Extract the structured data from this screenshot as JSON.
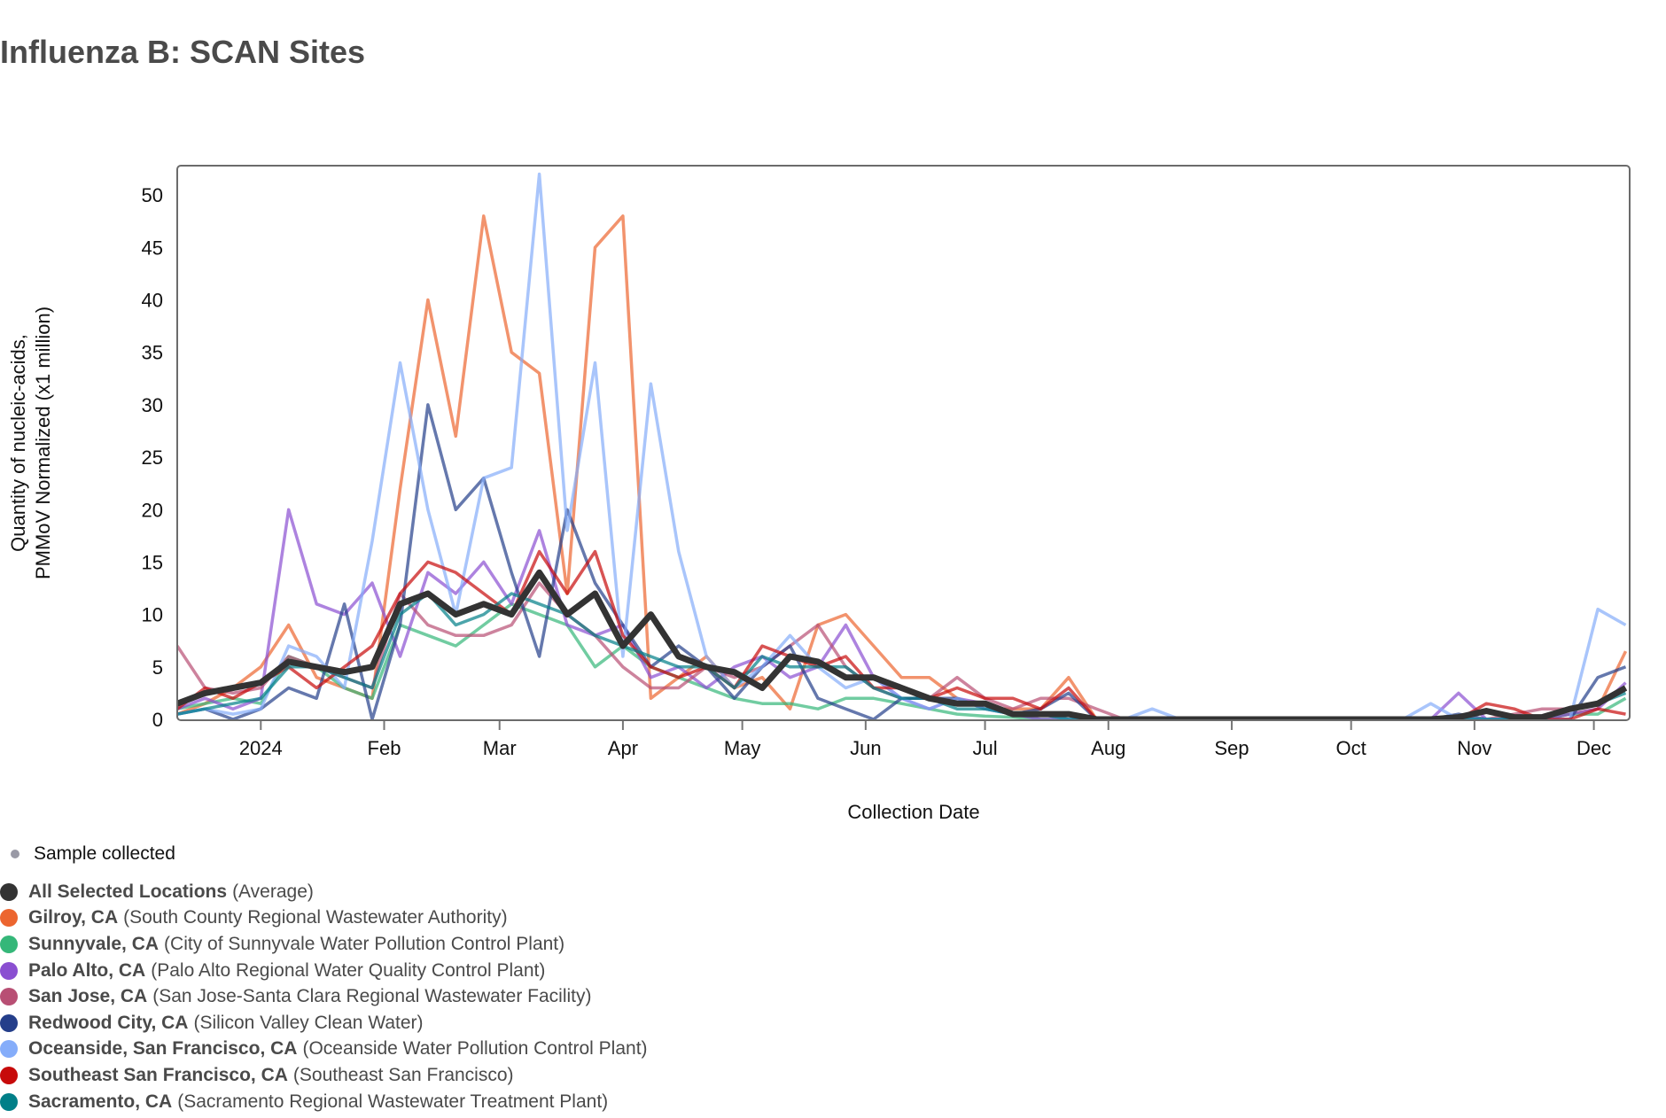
{
  "title": "Influenza B: SCAN Sites",
  "legend": {
    "sample_label": "Sample collected",
    "items": [
      {
        "location": "All Selected Locations",
        "facility": "(Average)",
        "color": "#333333"
      },
      {
        "location": "Gilroy, CA",
        "facility": "(South County Regional Wastewater Authority)",
        "color": "#EC652F"
      },
      {
        "location": "Sunnyvale, CA",
        "facility": "(City of Sunnyvale Water Pollution Control Plant)",
        "color": "#35B779"
      },
      {
        "location": "Palo Alto, CA",
        "facility": "(Palo Alto Regional Water Quality Control Plant)",
        "color": "#8A4FD1"
      },
      {
        "location": "San Jose, CA",
        "facility": "(San Jose-Santa Clara Regional Wastewater Facility)",
        "color": "#B84F74"
      },
      {
        "location": "Redwood City, CA",
        "facility": "(Silicon Valley Clean Water)",
        "color": "#243E8A"
      },
      {
        "location": "Oceanside, San Francisco, CA",
        "facility": "(Oceanside Water Pollution Control Plant)",
        "color": "#85ADFA"
      },
      {
        "location": "Southeast San Francisco, CA",
        "facility": "(Southeast San Francisco)",
        "color": "#C70A0A"
      },
      {
        "location": "Sacramento, CA",
        "facility": "(Sacramento Regional Wastewater Treatment Plant)",
        "color": "#007F88"
      }
    ]
  },
  "chart_data": {
    "type": "line",
    "title": "Influenza B: SCAN Sites",
    "xlabel": "Collection Date",
    "ylabel": [
      "Quantity of nucleic-acids,",
      "PMMoV Normalized (x1 million)"
    ],
    "x_start": "2023-12-11",
    "x_end": "2024-12-10",
    "ylim": [
      0,
      52.8
    ],
    "y_ticks": [
      0,
      5,
      10,
      15,
      20,
      25,
      30,
      35,
      40,
      45,
      50
    ],
    "x_ticks": [
      {
        "date": "2024-01-01",
        "label": "2024"
      },
      {
        "date": "2024-02-01",
        "label": "Feb"
      },
      {
        "date": "2024-03-01",
        "label": "Mar"
      },
      {
        "date": "2024-04-01",
        "label": "Apr"
      },
      {
        "date": "2024-05-01",
        "label": "May"
      },
      {
        "date": "2024-06-01",
        "label": "Jun"
      },
      {
        "date": "2024-07-01",
        "label": "Jul"
      },
      {
        "date": "2024-08-01",
        "label": "Aug"
      },
      {
        "date": "2024-09-01",
        "label": "Sep"
      },
      {
        "date": "2024-10-01",
        "label": "Oct"
      },
      {
        "date": "2024-11-01",
        "label": "Nov"
      },
      {
        "date": "2024-12-01",
        "label": "Dec"
      }
    ],
    "grid": false,
    "legend_position": "bottom-left",
    "x": [
      "2023-12-11",
      "2023-12-18",
      "2023-12-25",
      "2024-01-01",
      "2024-01-08",
      "2024-01-15",
      "2024-01-22",
      "2024-01-29",
      "2024-02-05",
      "2024-02-12",
      "2024-02-19",
      "2024-02-26",
      "2024-03-04",
      "2024-03-11",
      "2024-03-18",
      "2024-03-25",
      "2024-04-01",
      "2024-04-08",
      "2024-04-15",
      "2024-04-22",
      "2024-04-29",
      "2024-05-06",
      "2024-05-13",
      "2024-05-20",
      "2024-05-27",
      "2024-06-03",
      "2024-06-10",
      "2024-06-17",
      "2024-06-24",
      "2024-07-01",
      "2024-07-08",
      "2024-07-15",
      "2024-07-22",
      "2024-07-29",
      "2024-08-05",
      "2024-08-12",
      "2024-08-19",
      "2024-08-26",
      "2024-09-02",
      "2024-09-09",
      "2024-09-16",
      "2024-09-23",
      "2024-09-30",
      "2024-10-07",
      "2024-10-14",
      "2024-10-21",
      "2024-10-28",
      "2024-11-04",
      "2024-11-11",
      "2024-11-18",
      "2024-11-25",
      "2024-12-02",
      "2024-12-09"
    ],
    "series": [
      {
        "name": "Gilroy, CA",
        "color": "#EC652F",
        "values": [
          0.5,
          1.5,
          3,
          5,
          9,
          4,
          3,
          2,
          22,
          40,
          27,
          48,
          35,
          33,
          12,
          45,
          48,
          2,
          4,
          6,
          3,
          4,
          1,
          9,
          10,
          7,
          4,
          4,
          2,
          1,
          1,
          1,
          4,
          0,
          0,
          0,
          0,
          0,
          0,
          0,
          0,
          0,
          0,
          0,
          0,
          0,
          0,
          0,
          0,
          0,
          0.5,
          1,
          6.5
        ]
      },
      {
        "name": "Sunnyvale, CA",
        "color": "#35B779",
        "values": [
          1,
          1.5,
          2,
          1.5,
          6,
          5,
          3,
          2,
          9,
          8,
          7,
          9,
          11,
          10,
          9,
          5,
          7,
          5,
          4,
          3,
          2,
          1.5,
          1.5,
          1,
          2,
          2,
          1.5,
          1,
          0.5,
          0.3,
          0.2,
          0,
          0,
          0,
          0,
          0,
          0,
          0,
          0,
          0,
          0,
          0,
          0,
          0,
          0,
          0,
          0,
          0,
          0,
          0,
          0.5,
          0.5,
          2
        ]
      },
      {
        "name": "Palo Alto, CA",
        "color": "#8A4FD1",
        "values": [
          1,
          2,
          1,
          2,
          20,
          11,
          10,
          13,
          6,
          14,
          12,
          15,
          11,
          18,
          9,
          8,
          9,
          4,
          5,
          3,
          5,
          6,
          4,
          5,
          9,
          4,
          2,
          1,
          2,
          1.5,
          0.5,
          0,
          0,
          0,
          0,
          0,
          0,
          0,
          0,
          0,
          0,
          0,
          0,
          0,
          0,
          0,
          2.5,
          0,
          0,
          0,
          0.5,
          1,
          3.5
        ]
      },
      {
        "name": "San Jose, CA",
        "color": "#B84F74",
        "values": [
          7,
          3,
          2.5,
          3,
          6,
          5,
          4,
          3,
          12,
          9,
          8,
          8,
          9,
          13,
          10,
          8,
          5,
          3,
          3,
          5,
          4,
          5,
          7,
          9,
          5,
          3,
          2,
          2,
          4,
          2,
          1,
          2,
          2,
          1,
          0,
          0,
          0,
          0,
          0,
          0,
          0,
          0,
          0,
          0,
          0,
          0,
          0,
          0,
          0.5,
          1,
          1,
          1.5,
          3
        ]
      },
      {
        "name": "Redwood City, CA",
        "color": "#243E8A",
        "values": [
          0.5,
          1,
          0,
          1,
          3,
          2,
          11,
          0,
          9,
          30,
          20,
          23,
          14,
          6,
          20,
          13,
          9,
          5,
          7,
          5,
          2,
          5,
          7,
          2,
          1,
          0,
          2,
          2,
          2,
          1,
          0.5,
          1,
          2.5,
          0,
          0,
          0,
          0,
          0,
          0,
          0,
          0,
          0,
          0,
          0,
          0,
          0,
          0.5,
          0,
          0,
          0,
          0,
          4,
          5
        ]
      },
      {
        "name": "Oceanside, San Francisco, CA",
        "color": "#85ADFA",
        "values": [
          0.5,
          1,
          0.5,
          1,
          7,
          6,
          3,
          17,
          34,
          20,
          10,
          23,
          24,
          52,
          18,
          34,
          6,
          32,
          16,
          6,
          3,
          5,
          8,
          5,
          3,
          4,
          2,
          1,
          2,
          1,
          0.5,
          0.5,
          0,
          0,
          0,
          1,
          0,
          0,
          0,
          0,
          0,
          0,
          0,
          0,
          0,
          1.5,
          0,
          0,
          0,
          0,
          0,
          10.5,
          9
        ]
      },
      {
        "name": "Southeast San Francisco, CA",
        "color": "#C70A0A",
        "values": [
          1,
          3,
          2,
          3.5,
          5,
          3,
          5,
          7,
          12,
          15,
          14,
          12,
          10,
          16,
          12,
          16,
          8,
          5,
          4,
          5,
          3,
          7,
          6,
          5,
          6,
          3,
          3,
          2,
          3,
          2,
          2,
          1,
          3,
          0,
          0,
          0,
          0,
          0,
          0,
          0,
          0,
          0,
          0,
          0,
          0,
          0,
          0,
          1.5,
          1,
          0,
          0,
          1,
          0.5
        ]
      },
      {
        "name": "Sacramento, CA",
        "color": "#007F88",
        "values": [
          0.5,
          1,
          1.5,
          2,
          5,
          5,
          4,
          3,
          10,
          12,
          9,
          10,
          12,
          11,
          10,
          8,
          7,
          6,
          5,
          5,
          3,
          6,
          5,
          5,
          5,
          3,
          2,
          2,
          1,
          1,
          0.5,
          0.5,
          0,
          0,
          0,
          0,
          0,
          0,
          0,
          0,
          0,
          0,
          0,
          0,
          0,
          0,
          0,
          0,
          0,
          0,
          1,
          1.5,
          2.5
        ]
      },
      {
        "name": "All Selected Locations (Average)",
        "color": "#333333",
        "values": [
          1.5,
          2.5,
          3,
          3.5,
          5.5,
          5,
          4.5,
          5,
          11,
          12,
          10,
          11,
          10,
          14,
          10,
          12,
          7,
          10,
          6,
          5,
          4.5,
          3,
          6,
          5.5,
          4,
          4,
          3,
          2,
          1.5,
          1.5,
          0.5,
          0.5,
          0.5,
          0,
          0,
          0,
          0,
          0,
          0,
          0,
          0,
          0,
          0,
          0,
          0,
          0,
          0.2,
          0.8,
          0.2,
          0.2,
          1,
          1.5,
          3
        ]
      }
    ]
  }
}
